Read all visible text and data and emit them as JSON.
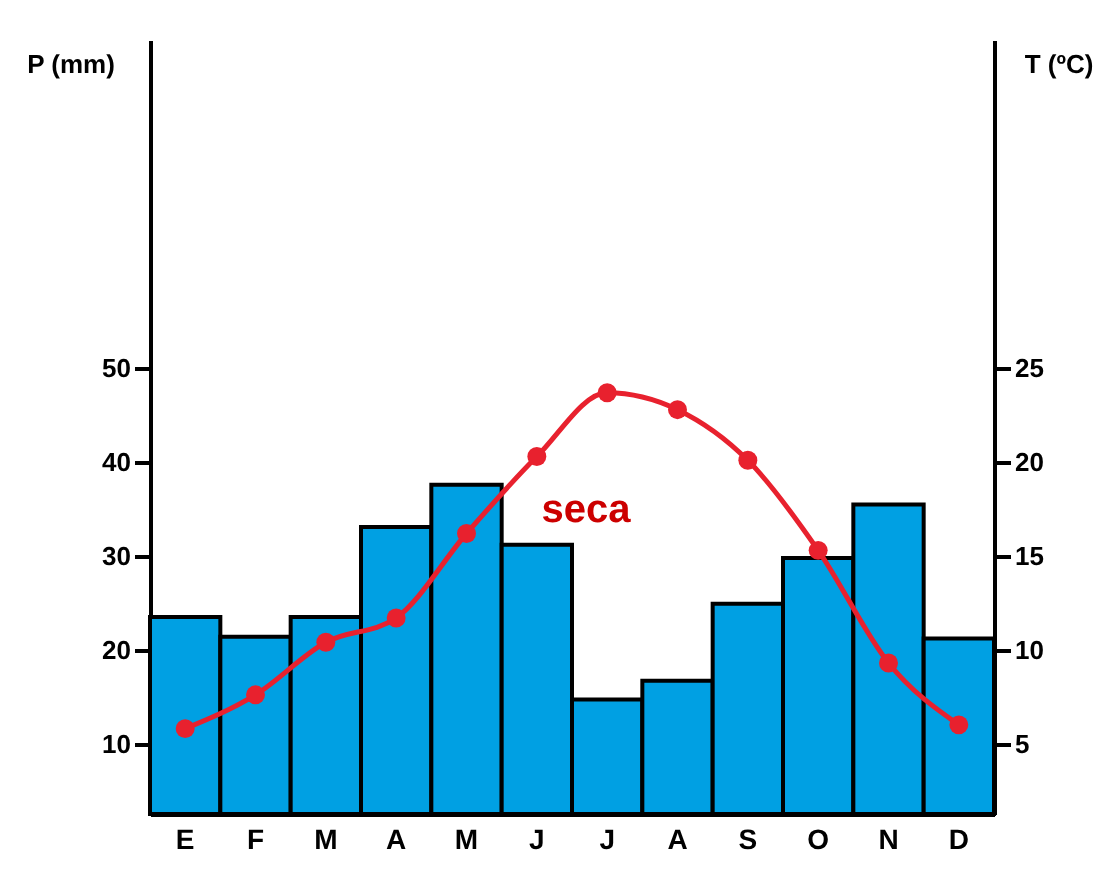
{
  "chart_data": {
    "type": "bar",
    "categories": [
      "E",
      "F",
      "M",
      "A",
      "M",
      "J",
      "J",
      "A",
      "S",
      "O",
      "N",
      "D"
    ],
    "series": [
      {
        "color": "#00a0e3",
        "values": [
          23.5,
          21.4,
          23.5,
          33.1,
          37.6,
          31.2,
          14.7,
          16.7,
          24.9,
          29.8,
          35.5,
          21.2
        ]
      },
      {
        "type": "line",
        "axis": "y2",
        "color": "#e8212e",
        "values": [
          5.8,
          7.6,
          10.4,
          11.7,
          16.2,
          20.3,
          23.7,
          22.8,
          20.1,
          15.3,
          9.3,
          6.0
        ]
      }
    ],
    "ylabel": "P (mm)",
    "y2label": "T (ºC)",
    "ylim": [
      2.5,
      85
    ],
    "yticks": [
      10,
      20,
      30,
      40,
      50
    ],
    "y2lim": [
      1.25,
      42.5
    ],
    "y2ticks": [
      5,
      10,
      15,
      20,
      25
    ],
    "annotations": [
      "seca"
    ],
    "marker": "circle",
    "grid": false
  }
}
